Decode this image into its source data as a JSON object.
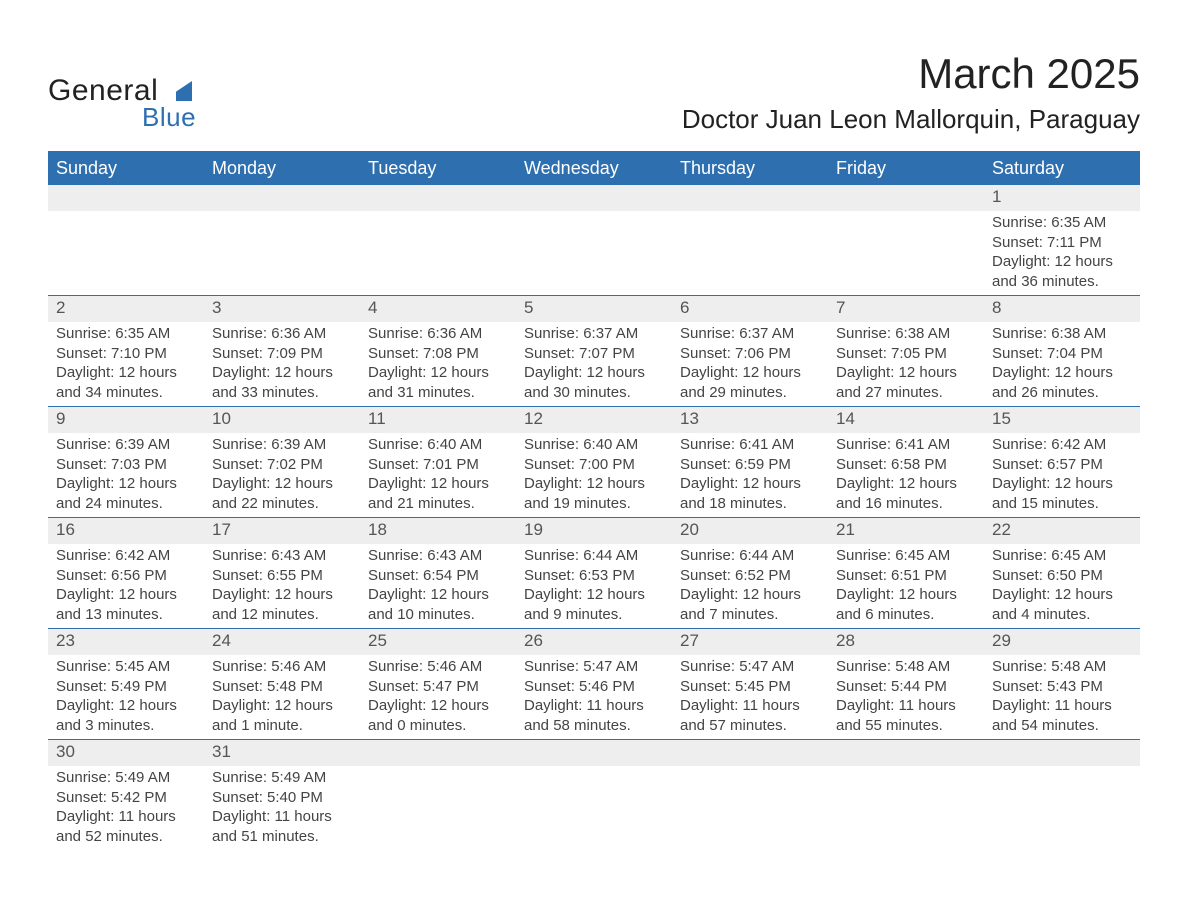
{
  "logo": {
    "word1": "General",
    "word2": "Blue",
    "accent_color": "#2e6fb0"
  },
  "title": {
    "month_year": "March 2025",
    "location": "Doctor Juan Leon Mallorquin, Paraguay"
  },
  "colors": {
    "header_bg": "#2e6fb0",
    "header_text": "#ffffff",
    "daynum_bg": "#eeeeee",
    "row_divider": "#2e6fb0",
    "text": "#444444",
    "background": "#ffffff"
  },
  "fonts": {
    "family": "Arial, Helvetica, sans-serif",
    "title_month_pt": 42,
    "title_location_pt": 26,
    "header_pt": 18,
    "daynum_pt": 17,
    "body_pt": 15
  },
  "day_headers": [
    "Sunday",
    "Monday",
    "Tuesday",
    "Wednesday",
    "Thursday",
    "Friday",
    "Saturday"
  ],
  "weeks": [
    [
      {
        "n": "",
        "sunrise": "",
        "sunset": "",
        "daylight": ""
      },
      {
        "n": "",
        "sunrise": "",
        "sunset": "",
        "daylight": ""
      },
      {
        "n": "",
        "sunrise": "",
        "sunset": "",
        "daylight": ""
      },
      {
        "n": "",
        "sunrise": "",
        "sunset": "",
        "daylight": ""
      },
      {
        "n": "",
        "sunrise": "",
        "sunset": "",
        "daylight": ""
      },
      {
        "n": "",
        "sunrise": "",
        "sunset": "",
        "daylight": ""
      },
      {
        "n": "1",
        "sunrise": "Sunrise: 6:35 AM",
        "sunset": "Sunset: 7:11 PM",
        "daylight": "Daylight: 12 hours and 36 minutes."
      }
    ],
    [
      {
        "n": "2",
        "sunrise": "Sunrise: 6:35 AM",
        "sunset": "Sunset: 7:10 PM",
        "daylight": "Daylight: 12 hours and 34 minutes."
      },
      {
        "n": "3",
        "sunrise": "Sunrise: 6:36 AM",
        "sunset": "Sunset: 7:09 PM",
        "daylight": "Daylight: 12 hours and 33 minutes."
      },
      {
        "n": "4",
        "sunrise": "Sunrise: 6:36 AM",
        "sunset": "Sunset: 7:08 PM",
        "daylight": "Daylight: 12 hours and 31 minutes."
      },
      {
        "n": "5",
        "sunrise": "Sunrise: 6:37 AM",
        "sunset": "Sunset: 7:07 PM",
        "daylight": "Daylight: 12 hours and 30 minutes."
      },
      {
        "n": "6",
        "sunrise": "Sunrise: 6:37 AM",
        "sunset": "Sunset: 7:06 PM",
        "daylight": "Daylight: 12 hours and 29 minutes."
      },
      {
        "n": "7",
        "sunrise": "Sunrise: 6:38 AM",
        "sunset": "Sunset: 7:05 PM",
        "daylight": "Daylight: 12 hours and 27 minutes."
      },
      {
        "n": "8",
        "sunrise": "Sunrise: 6:38 AM",
        "sunset": "Sunset: 7:04 PM",
        "daylight": "Daylight: 12 hours and 26 minutes."
      }
    ],
    [
      {
        "n": "9",
        "sunrise": "Sunrise: 6:39 AM",
        "sunset": "Sunset: 7:03 PM",
        "daylight": "Daylight: 12 hours and 24 minutes."
      },
      {
        "n": "10",
        "sunrise": "Sunrise: 6:39 AM",
        "sunset": "Sunset: 7:02 PM",
        "daylight": "Daylight: 12 hours and 22 minutes."
      },
      {
        "n": "11",
        "sunrise": "Sunrise: 6:40 AM",
        "sunset": "Sunset: 7:01 PM",
        "daylight": "Daylight: 12 hours and 21 minutes."
      },
      {
        "n": "12",
        "sunrise": "Sunrise: 6:40 AM",
        "sunset": "Sunset: 7:00 PM",
        "daylight": "Daylight: 12 hours and 19 minutes."
      },
      {
        "n": "13",
        "sunrise": "Sunrise: 6:41 AM",
        "sunset": "Sunset: 6:59 PM",
        "daylight": "Daylight: 12 hours and 18 minutes."
      },
      {
        "n": "14",
        "sunrise": "Sunrise: 6:41 AM",
        "sunset": "Sunset: 6:58 PM",
        "daylight": "Daylight: 12 hours and 16 minutes."
      },
      {
        "n": "15",
        "sunrise": "Sunrise: 6:42 AM",
        "sunset": "Sunset: 6:57 PM",
        "daylight": "Daylight: 12 hours and 15 minutes."
      }
    ],
    [
      {
        "n": "16",
        "sunrise": "Sunrise: 6:42 AM",
        "sunset": "Sunset: 6:56 PM",
        "daylight": "Daylight: 12 hours and 13 minutes."
      },
      {
        "n": "17",
        "sunrise": "Sunrise: 6:43 AM",
        "sunset": "Sunset: 6:55 PM",
        "daylight": "Daylight: 12 hours and 12 minutes."
      },
      {
        "n": "18",
        "sunrise": "Sunrise: 6:43 AM",
        "sunset": "Sunset: 6:54 PM",
        "daylight": "Daylight: 12 hours and 10 minutes."
      },
      {
        "n": "19",
        "sunrise": "Sunrise: 6:44 AM",
        "sunset": "Sunset: 6:53 PM",
        "daylight": "Daylight: 12 hours and 9 minutes."
      },
      {
        "n": "20",
        "sunrise": "Sunrise: 6:44 AM",
        "sunset": "Sunset: 6:52 PM",
        "daylight": "Daylight: 12 hours and 7 minutes."
      },
      {
        "n": "21",
        "sunrise": "Sunrise: 6:45 AM",
        "sunset": "Sunset: 6:51 PM",
        "daylight": "Daylight: 12 hours and 6 minutes."
      },
      {
        "n": "22",
        "sunrise": "Sunrise: 6:45 AM",
        "sunset": "Sunset: 6:50 PM",
        "daylight": "Daylight: 12 hours and 4 minutes."
      }
    ],
    [
      {
        "n": "23",
        "sunrise": "Sunrise: 5:45 AM",
        "sunset": "Sunset: 5:49 PM",
        "daylight": "Daylight: 12 hours and 3 minutes."
      },
      {
        "n": "24",
        "sunrise": "Sunrise: 5:46 AM",
        "sunset": "Sunset: 5:48 PM",
        "daylight": "Daylight: 12 hours and 1 minute."
      },
      {
        "n": "25",
        "sunrise": "Sunrise: 5:46 AM",
        "sunset": "Sunset: 5:47 PM",
        "daylight": "Daylight: 12 hours and 0 minutes."
      },
      {
        "n": "26",
        "sunrise": "Sunrise: 5:47 AM",
        "sunset": "Sunset: 5:46 PM",
        "daylight": "Daylight: 11 hours and 58 minutes."
      },
      {
        "n": "27",
        "sunrise": "Sunrise: 5:47 AM",
        "sunset": "Sunset: 5:45 PM",
        "daylight": "Daylight: 11 hours and 57 minutes."
      },
      {
        "n": "28",
        "sunrise": "Sunrise: 5:48 AM",
        "sunset": "Sunset: 5:44 PM",
        "daylight": "Daylight: 11 hours and 55 minutes."
      },
      {
        "n": "29",
        "sunrise": "Sunrise: 5:48 AM",
        "sunset": "Sunset: 5:43 PM",
        "daylight": "Daylight: 11 hours and 54 minutes."
      }
    ],
    [
      {
        "n": "30",
        "sunrise": "Sunrise: 5:49 AM",
        "sunset": "Sunset: 5:42 PM",
        "daylight": "Daylight: 11 hours and 52 minutes."
      },
      {
        "n": "31",
        "sunrise": "Sunrise: 5:49 AM",
        "sunset": "Sunset: 5:40 PM",
        "daylight": "Daylight: 11 hours and 51 minutes."
      },
      {
        "n": "",
        "sunrise": "",
        "sunset": "",
        "daylight": ""
      },
      {
        "n": "",
        "sunrise": "",
        "sunset": "",
        "daylight": ""
      },
      {
        "n": "",
        "sunrise": "",
        "sunset": "",
        "daylight": ""
      },
      {
        "n": "",
        "sunrise": "",
        "sunset": "",
        "daylight": ""
      },
      {
        "n": "",
        "sunrise": "",
        "sunset": "",
        "daylight": ""
      }
    ]
  ]
}
